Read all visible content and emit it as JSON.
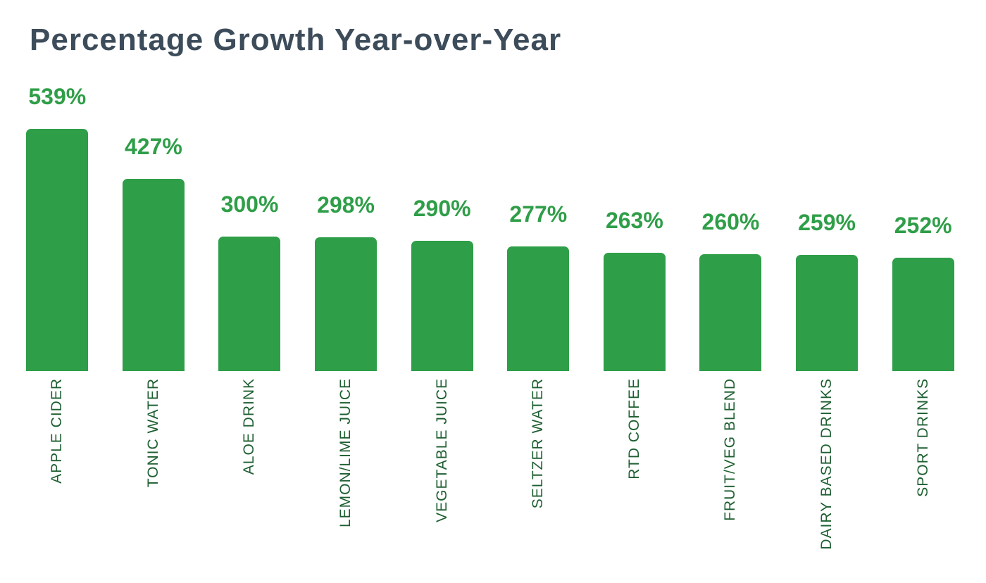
{
  "page": {
    "background_color": "#ffffff"
  },
  "chart_data": {
    "type": "bar",
    "title": "Percentage Growth Year-over-Year",
    "categories": [
      "APPLE CIDER",
      "TONIC WATER",
      "ALOE DRINK",
      "LEMON/LIME JUICE",
      "VEGETABLE JUICE",
      "SELTZER WATER",
      "RTD COFFEE",
      "FRUIT/VEG BLEND",
      "DAIRY BASED DRINKS",
      "SPORT DRINKS"
    ],
    "values": [
      539,
      427,
      300,
      298,
      290,
      277,
      263,
      260,
      259,
      252
    ],
    "value_labels": [
      "539%",
      "427%",
      "300%",
      "298%",
      "290%",
      "277%",
      "263%",
      "260%",
      "259%",
      "252%"
    ],
    "xlabel": "",
    "ylabel": "",
    "ylim": [
      0,
      539
    ],
    "grid": false,
    "legend": false,
    "axes_visible": false,
    "value_label_position": "above-bar",
    "category_label_rotation": -90,
    "colors": {
      "bar": "#2f9e48",
      "value_label": "#2f9e48",
      "category_label": "#1e5f31",
      "title": "#3d4c5a"
    }
  }
}
